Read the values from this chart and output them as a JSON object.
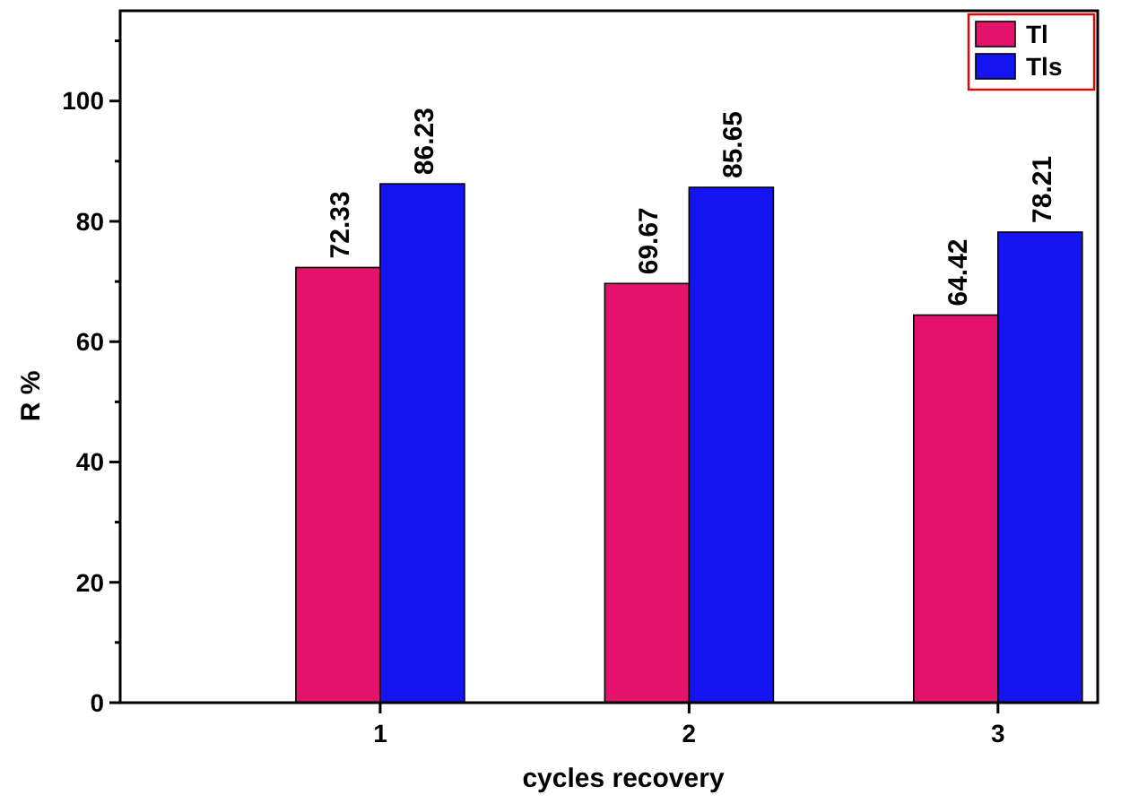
{
  "chart_data": {
    "type": "bar",
    "xlabel": "cycles recovery",
    "ylabel": "R %",
    "categories": [
      "1",
      "2",
      "3"
    ],
    "series": [
      {
        "name": "Tl",
        "color": "#e3126a",
        "values": [
          72.33,
          69.67,
          64.42
        ]
      },
      {
        "name": "Tls",
        "color": "#1414f0",
        "values": [
          86.23,
          85.65,
          78.21
        ]
      }
    ],
    "ylim": [
      0,
      115
    ],
    "yticks": [
      0,
      {
        "value": 10,
        "label": null
      },
      20,
      {
        "value": 30,
        "label": null
      },
      40,
      {
        "value": 50,
        "label": null
      },
      60,
      {
        "value": 70,
        "label": null
      },
      80,
      {
        "value": 90,
        "label": null
      },
      100,
      {
        "value": 110,
        "label": null
      }
    ],
    "data_labels": true,
    "legend": "top right",
    "grid": false
  }
}
